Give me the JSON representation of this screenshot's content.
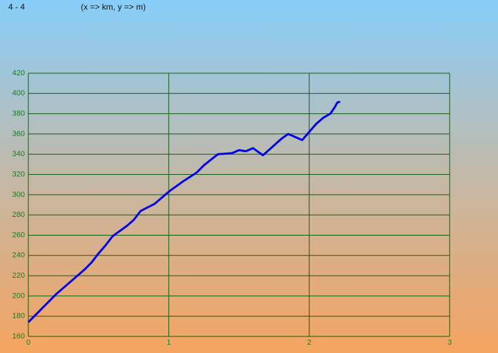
{
  "chart_data": {
    "type": "line",
    "title": "4 - 4",
    "subtitle": "(x => km, y => m)",
    "x": [
      0,
      0.1,
      0.2,
      0.3,
      0.4,
      0.45,
      0.5,
      0.55,
      0.6,
      0.7,
      0.75,
      0.8,
      0.9,
      1.0,
      1.1,
      1.2,
      1.25,
      1.35,
      1.45,
      1.5,
      1.55,
      1.6,
      1.65,
      1.67,
      1.72,
      1.8,
      1.85,
      1.95,
      2.0,
      2.05,
      2.1,
      2.15,
      2.18,
      2.2,
      2.22
    ],
    "series": [
      {
        "color": "#0000ee",
        "values": [
          174,
          188,
          202,
          214,
          226,
          233,
          242,
          250,
          259,
          269,
          275,
          284,
          291,
          303,
          313,
          322,
          329,
          340,
          341,
          344,
          343,
          346,
          341,
          339,
          345,
          355,
          360,
          354,
          362,
          370,
          376,
          380,
          386,
          391,
          392
        ]
      }
    ],
    "xlim": [
      0,
      3
    ],
    "xticks": [
      0,
      1,
      2,
      3
    ],
    "ylim": [
      160,
      420
    ],
    "yticks": [
      160,
      180,
      200,
      220,
      240,
      260,
      280,
      300,
      320,
      340,
      360,
      380,
      400,
      420
    ],
    "grid": true,
    "grid_color": "#0f5a0f"
  }
}
